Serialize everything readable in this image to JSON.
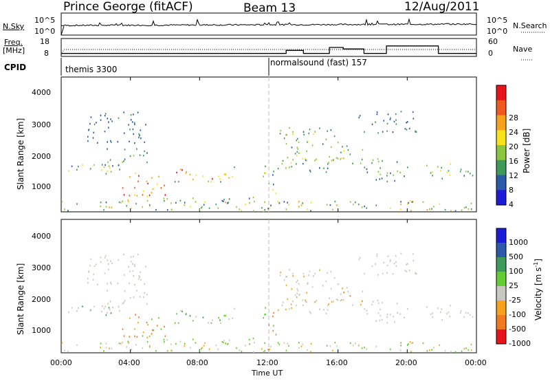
{
  "header": {
    "station": "Prince George (fitACF)",
    "beam": "Beam 13",
    "date": "12/Aug/2011"
  },
  "noise_panel": {
    "left_label": "N.Sky",
    "left_ticks": [
      "10^5",
      "10^0"
    ],
    "right_ticks": [
      "10^5",
      "10^0"
    ],
    "right_label": "N.Search"
  },
  "freq_panel": {
    "left_label_line1": "Freq.",
    "left_label_line2": "[MHz]",
    "left_ticks": [
      "18",
      "8"
    ],
    "right_ticks": [
      "60",
      "0"
    ],
    "right_label": "Nave"
  },
  "cpid": {
    "label": "CPID",
    "segments": [
      "themis 3300",
      "normalsound (fast) 157"
    ]
  },
  "axes": {
    "ylabel": "Slant Range [km]",
    "yticks": [
      "4000",
      "3000",
      "2000",
      "1000"
    ],
    "xlabel": "Time UT",
    "xticks": [
      "00:00",
      "04:00",
      "08:00",
      "12:00",
      "16:00",
      "20:00",
      "00:00"
    ]
  },
  "power_colorbar": {
    "label": "Power [dB]",
    "ticks": [
      "28",
      "24",
      "20",
      "16",
      "12",
      "8",
      "4"
    ],
    "colors": [
      "#e8141c",
      "#f05a1e",
      "#f7a21c",
      "#f7e21c",
      "#8cc63e",
      "#3e9a5a",
      "#2a5aa8",
      "#1c1cd6"
    ]
  },
  "velocity_colorbar": {
    "label": "Velocity [m s",
    "label_sup": "-1",
    "label_end": "]",
    "ticks": [
      "1000",
      "500",
      "100",
      "25",
      "-25",
      "-100",
      "-500",
      "-1000"
    ],
    "colors": [
      "#1c1cd6",
      "#2a5aa8",
      "#3e9a5a",
      "#66cc33",
      "#c8c8c0",
      "#f7a21c",
      "#f07a1e",
      "#e8141c"
    ]
  },
  "chart_data": {
    "type": "heatmap",
    "title": "Prince George (fitACF) Beam 13 12/Aug/2011",
    "xlabel": "Time UT",
    "ylabel": "Slant Range [km]",
    "x_range_hours": [
      0,
      24
    ],
    "y_range_km": [
      200,
      4600
    ],
    "xticks": [
      "00:00",
      "04:00",
      "08:00",
      "12:00",
      "16:00",
      "20:00",
      "00:00"
    ],
    "yticks": [
      4000,
      3000,
      2000,
      1000
    ],
    "panels": [
      "Power [dB]",
      "Velocity [m s-1]"
    ],
    "power_scale_db": [
      0,
      30
    ],
    "velocity_levels": [
      1000,
      500,
      100,
      25,
      -25,
      -100,
      -500,
      -1000
    ],
    "cpid_changes": [
      {
        "start_hour": 0,
        "program": "themis 3300"
      },
      {
        "start_hour": 12,
        "program": "normalsound (fast) 157"
      }
    ],
    "freq_mhz_range": [
      8,
      18
    ],
    "nave_range": [
      0,
      60
    ],
    "nave_steps": [
      {
        "start_hour": 0,
        "end_hour": 12,
        "value": 10
      },
      {
        "start_hour": 12,
        "end_hour": 13,
        "value": 10
      },
      {
        "start_hour": 13,
        "end_hour": 14,
        "value": 20
      },
      {
        "start_hour": 14,
        "end_hour": 15.5,
        "value": 10
      },
      {
        "start_hour": 15.5,
        "end_hour": 16.3,
        "value": 30
      },
      {
        "start_hour": 16.3,
        "end_hour": 17.5,
        "value": 25
      },
      {
        "start_hour": 17.5,
        "end_hour": 18.8,
        "value": 10
      },
      {
        "start_hour": 18.8,
        "end_hour": 21.8,
        "value": 35
      },
      {
        "start_hour": 21.8,
        "end_hour": 24,
        "value": 10
      }
    ]
  }
}
